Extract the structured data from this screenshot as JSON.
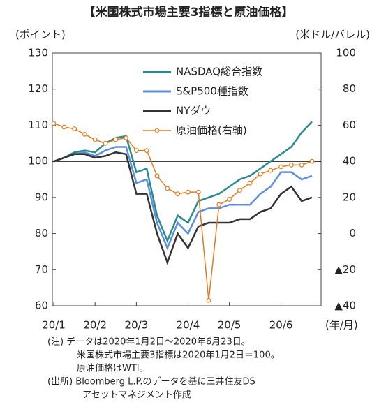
{
  "chart_data": {
    "type": "line",
    "title": "【米国株式市場主要3指標と原油価格】",
    "y_label": "(ポイント)",
    "y2_label": "(米ドル/バレル)",
    "x_label": "(年/月)",
    "categories": [
      "20/1",
      null,
      null,
      null,
      "20/2",
      null,
      null,
      null,
      "20/3",
      null,
      null,
      null,
      null,
      "20/4",
      null,
      null,
      null,
      "20/5",
      null,
      null,
      null,
      null,
      "20/6",
      null,
      null,
      null
    ],
    "ylim": [
      60,
      130
    ],
    "yticks": [
      60,
      70,
      80,
      90,
      100,
      110,
      120,
      130
    ],
    "y2lim": [
      -40,
      100
    ],
    "y2ticks": [
      {
        "value": -40,
        "label": "▲40"
      },
      {
        "value": -20,
        "label": "▲20"
      },
      0,
      20,
      40,
      60,
      80,
      100
    ],
    "reference_line": 100,
    "series": [
      {
        "name": "NASDAQ総合指数",
        "color": "#2a8a8c",
        "values": [
          100,
          101,
          102.5,
          103,
          102.5,
          105,
          106.5,
          107,
          97,
          98,
          85,
          78,
          85,
          83,
          89,
          90,
          91,
          93,
          95,
          96,
          98,
          100,
          102,
          104,
          108,
          111
        ]
      },
      {
        "name": "S&P500種指数",
        "color": "#5b8fd9",
        "values": [
          100,
          101,
          102,
          102.5,
          101.5,
          103,
          104,
          104,
          94,
          95,
          83,
          76,
          83,
          80,
          86,
          87,
          87,
          88,
          88,
          88,
          91,
          93,
          97,
          97,
          95,
          96
        ]
      },
      {
        "name": "NYダウ",
        "color": "#333333",
        "values": [
          100,
          101,
          102,
          102,
          101,
          101.5,
          102.5,
          102,
          91,
          91,
          80,
          72,
          80,
          76,
          82,
          83,
          83,
          83,
          84,
          84,
          86,
          87,
          91,
          93,
          89,
          90
        ]
      },
      {
        "name": "原油価格(右軸)",
        "color": "#e07b20",
        "axis": "y2",
        "marker": "circle",
        "values": [
          61,
          59,
          58,
          55,
          52,
          50,
          52,
          53,
          46,
          46,
          32,
          25,
          22,
          23,
          23,
          -37,
          16,
          19,
          24,
          28,
          33,
          35,
          37,
          38,
          38,
          40
        ]
      }
    ],
    "notes": [
      "(注) データは2020年1月2日～2020年6月23日。",
      "米国株式市場主要3指標は2020年1月2日＝100。",
      "原油価格はWTI。",
      "(出所) Bloomberg L.P.のデータを基に三井住友DS",
      "アセットマネジメント作成"
    ]
  }
}
